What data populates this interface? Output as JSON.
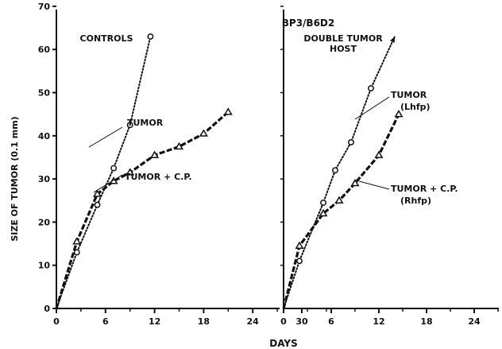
{
  "figure": {
    "title": "BP3/B6D2",
    "ylabel": "SIZE OF TUMOR (0.1 mm)",
    "xlabel": "DAYS"
  },
  "chart_data": [
    {
      "type": "line",
      "panel_title": "CONTROLS",
      "xlim": [
        0,
        35
      ],
      "ylim": [
        0,
        75
      ],
      "x_ticks": [
        0,
        6,
        12,
        18,
        24,
        30
      ],
      "y_ticks": [
        0,
        10,
        20,
        30,
        40,
        50,
        60,
        70
      ],
      "series": [
        {
          "name": "TUMOR",
          "marker": "circle",
          "line_style": "dotted",
          "points": [
            [
              0,
              0
            ],
            [
              2.5,
              13
            ],
            [
              5,
              24
            ],
            [
              7,
              32.5
            ],
            [
              9,
              42.5
            ],
            [
              11.5,
              63
            ]
          ]
        },
        {
          "name": "TUMOR + C.P.",
          "marker": "triangle",
          "line_style": "dashed",
          "points": [
            [
              0,
              0
            ],
            [
              2.5,
              15.5
            ],
            [
              5,
              26.5
            ],
            [
              7,
              29.5
            ],
            [
              9,
              31.5
            ],
            [
              12,
              35.5
            ],
            [
              15,
              37.5
            ],
            [
              18,
              40.5
            ],
            [
              21,
              45.5
            ]
          ]
        }
      ]
    },
    {
      "type": "line",
      "panel_title": "DOUBLE TUMOR\nHOST",
      "xlim": [
        0,
        35
      ],
      "ylim": [
        0,
        75
      ],
      "x_ticks": [
        0,
        6,
        12,
        18,
        24,
        30
      ],
      "series": [
        {
          "name": "TUMOR\n(Lhfp)",
          "marker": "circle",
          "line_style": "dotted",
          "arrow_end": true,
          "points": [
            [
              0,
              0
            ],
            [
              2,
              11
            ],
            [
              5,
              24.5
            ],
            [
              6.5,
              32
            ],
            [
              8.5,
              38.5
            ],
            [
              11,
              51
            ],
            [
              14,
              63
            ]
          ]
        },
        {
          "name": "TUMOR + C.P.\n(Rhfp)",
          "marker": "triangle",
          "line_style": "dashed",
          "points": [
            [
              0,
              0
            ],
            [
              2,
              14.5
            ],
            [
              5,
              22
            ],
            [
              7,
              25
            ],
            [
              9,
              29
            ],
            [
              12,
              35.5
            ],
            [
              14.5,
              45
            ]
          ]
        }
      ]
    }
  ]
}
